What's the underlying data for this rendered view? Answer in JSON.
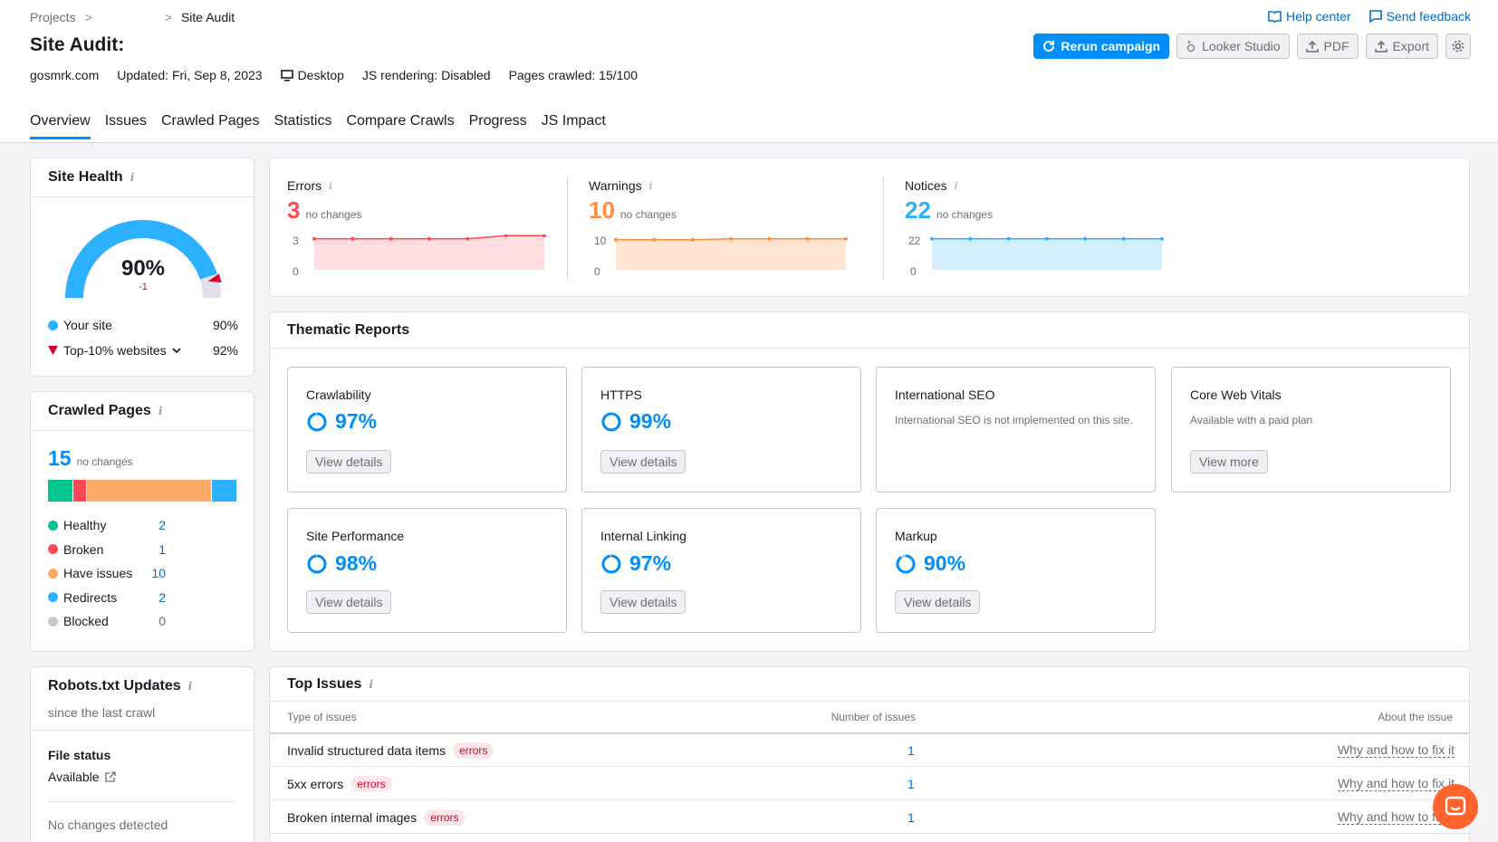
{
  "breadcrumb": {
    "projects": "Projects",
    "sep1": ">",
    "blank": "",
    "sep2": ">",
    "current": "Site Audit"
  },
  "title": "Site Audit:",
  "meta": {
    "domain": "gosmrk.com",
    "updated": "Updated: Fri, Sep 8, 2023",
    "device": "Desktop",
    "js": "JS rendering: Disabled",
    "pages": "Pages crawled: 15/100"
  },
  "toplinks": {
    "help": "Help center",
    "feedback": "Send feedback"
  },
  "toolbar": {
    "rerun": "Rerun campaign",
    "looker": "Looker Studio",
    "pdf": "PDF",
    "export": "Export"
  },
  "tabs": [
    "Overview",
    "Issues",
    "Crawled Pages",
    "Statistics",
    "Compare Crawls",
    "Progress",
    "JS Impact"
  ],
  "site_health": {
    "title": "Site Health",
    "value": "90%",
    "delta": "-1",
    "value_fraction": 0.9,
    "top10_fraction": 0.92,
    "legend": [
      {
        "label": "Your site",
        "value": "90%",
        "color": "#2bb1ff"
      },
      {
        "label": "Top-10% websites",
        "value": "92%",
        "color": "#d1002f"
      }
    ]
  },
  "crawled_pages": {
    "title": "Crawled Pages",
    "count": "15",
    "change": "no changes",
    "items": [
      {
        "label": "Healthy",
        "value": "2",
        "color": "#00c591",
        "n": 2
      },
      {
        "label": "Broken",
        "value": "1",
        "color": "#ff4953",
        "n": 1
      },
      {
        "label": "Have issues",
        "value": "10",
        "color": "#ffaa66",
        "n": 10
      },
      {
        "label": "Redirects",
        "value": "2",
        "color": "#2bb1ff",
        "n": 2
      },
      {
        "label": "Blocked",
        "value": "0",
        "color": "#c4c7cf",
        "n": 0
      }
    ]
  },
  "robots": {
    "title": "Robots.txt Updates",
    "subtitle": "since the last crawl",
    "file_status_label": "File status",
    "file_status": "Available",
    "changes": "No changes detected"
  },
  "issues_summary": [
    {
      "label": "Errors",
      "value": "3",
      "change": "no changes",
      "color": "#ff4953",
      "fill": "#ffdde0",
      "ymax": "3",
      "ymin": "0",
      "series": [
        3,
        3,
        3,
        3,
        3,
        3.3,
        3.3
      ]
    },
    {
      "label": "Warnings",
      "value": "10",
      "change": "no changes",
      "color": "#ff8c43",
      "fill": "#ffe4d1",
      "ymax": "10",
      "ymin": "0",
      "series": [
        9.7,
        9.7,
        9.7,
        10,
        10,
        10,
        10
      ]
    },
    {
      "label": "Notices",
      "value": "22",
      "change": "no changes",
      "color": "#2bb1ff",
      "fill": "#d2eeff",
      "ymax": "22",
      "ymin": "0",
      "series": [
        22,
        22,
        22,
        22,
        22,
        22,
        22
      ]
    }
  ],
  "thematic": {
    "title": "Thematic Reports",
    "cards": [
      {
        "title": "Crawlability",
        "pct": "97%",
        "button": "View details"
      },
      {
        "title": "HTTPS",
        "pct": "99%",
        "button": "View details"
      },
      {
        "title": "International SEO",
        "desc": "International SEO is not implemented on this site.",
        "pct": "",
        "button": ""
      },
      {
        "title": "Core Web Vitals",
        "desc": "Available with a paid plan",
        "pct": "",
        "button": "View more"
      },
      {
        "title": "Site Performance",
        "pct": "98%",
        "button": "View details"
      },
      {
        "title": "Internal Linking",
        "pct": "97%",
        "button": "View details"
      },
      {
        "title": "Markup",
        "pct": "90%",
        "button": "View details"
      }
    ]
  },
  "top_issues": {
    "title": "Top Issues",
    "columns": {
      "type": "Type of issues",
      "number": "Number of issues",
      "about": "About the issue"
    },
    "rows": [
      {
        "name": "Invalid structured data items",
        "badge": "errors",
        "count": "1",
        "link": "Why and how to fix it"
      },
      {
        "name": "5xx errors",
        "badge": "errors",
        "count": "1",
        "link": "Why and how to fix it"
      },
      {
        "name": "Broken internal images",
        "badge": "errors",
        "count": "1",
        "link": "Why and how to fix it"
      }
    ]
  }
}
